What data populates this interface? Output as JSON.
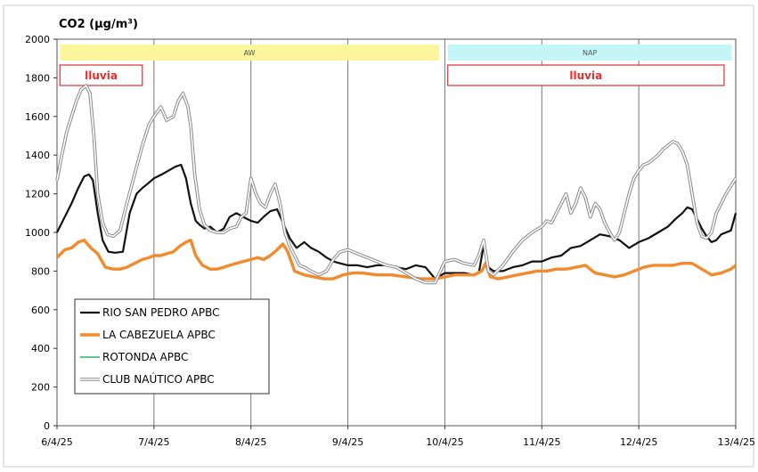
{
  "chart_data": {
    "type": "line",
    "title": "CO2 (µg/m³)",
    "ylim": [
      0,
      2000
    ],
    "yticks": [
      0,
      200,
      400,
      600,
      800,
      1000,
      1200,
      1400,
      1600,
      1800,
      2000
    ],
    "xlim": [
      0,
      7
    ],
    "xticks": [
      {
        "value": 0,
        "label": "6/4/25"
      },
      {
        "value": 1,
        "label": "7/4/25"
      },
      {
        "value": 2,
        "label": "8/4/25"
      },
      {
        "value": 3,
        "label": "9/4/25"
      },
      {
        "value": 4,
        "label": "10/4/25"
      },
      {
        "value": 5,
        "label": "11/4/25"
      },
      {
        "value": 6,
        "label": "12/4/25"
      },
      {
        "value": 7,
        "label": "13/4/25"
      }
    ],
    "grid": "vertical",
    "legend_position": "bottom-left",
    "bands": [
      {
        "label": "AW",
        "x_start": 0.03,
        "x_end": 3.94,
        "color": "#fbf59b"
      },
      {
        "label": "NAP",
        "x_start": 4.03,
        "x_end": 6.96,
        "color": "#c4f6f7"
      }
    ],
    "annotations": [
      {
        "label": "lluvia",
        "x_start": 0.03,
        "x_end": 0.88,
        "color": "#e03030"
      },
      {
        "label": "lluvia",
        "x_start": 4.03,
        "x_end": 6.88,
        "color": "#e03030"
      }
    ],
    "series": [
      {
        "name": "RIO SAN PEDRO APBC",
        "color": "#111111",
        "width": 2.2,
        "x": [
          0,
          0.08,
          0.15,
          0.22,
          0.28,
          0.33,
          0.37,
          0.42,
          0.47,
          0.53,
          0.6,
          0.68,
          0.75,
          0.82,
          0.88,
          0.93,
          1.0,
          1.08,
          1.15,
          1.22,
          1.28,
          1.33,
          1.38,
          1.43,
          1.47,
          1.52,
          1.58,
          1.65,
          1.72,
          1.78,
          1.85,
          1.92,
          2.0,
          2.07,
          2.13,
          2.2,
          2.27,
          2.33,
          2.4,
          2.47,
          2.55,
          2.62,
          2.7,
          2.78,
          2.85,
          2.92,
          3.0,
          3.1,
          3.2,
          3.3,
          3.4,
          3.5,
          3.6,
          3.7,
          3.8,
          3.9,
          4.0,
          4.1,
          4.2,
          4.3,
          4.35,
          4.4,
          4.45,
          4.5,
          4.6,
          4.7,
          4.8,
          4.9,
          5.0,
          5.1,
          5.2,
          5.3,
          5.4,
          5.5,
          5.6,
          5.7,
          5.8,
          5.9,
          6.0,
          6.1,
          6.2,
          6.3,
          6.38,
          6.45,
          6.5,
          6.55,
          6.6,
          6.65,
          6.7,
          6.75,
          6.8,
          6.85,
          6.9,
          6.95,
          7.0
        ],
        "y": [
          1000,
          1080,
          1150,
          1230,
          1290,
          1300,
          1270,
          1100,
          960,
          900,
          895,
          900,
          1100,
          1200,
          1230,
          1250,
          1280,
          1300,
          1320,
          1340,
          1350,
          1280,
          1150,
          1060,
          1040,
          1020,
          1030,
          1000,
          1020,
          1080,
          1100,
          1080,
          1060,
          1050,
          1080,
          1110,
          1120,
          1050,
          970,
          920,
          950,
          920,
          900,
          870,
          850,
          840,
          830,
          830,
          820,
          830,
          830,
          820,
          810,
          830,
          820,
          760,
          790,
          790,
          790,
          780,
          790,
          930,
          820,
          800,
          800,
          820,
          830,
          850,
          850,
          870,
          880,
          920,
          930,
          960,
          990,
          980,
          960,
          920,
          950,
          970,
          1000,
          1030,
          1070,
          1100,
          1130,
          1120,
          1070,
          1020,
          980,
          950,
          960,
          990,
          1000,
          1010,
          1100
        ]
      },
      {
        "name": "LA CABEZUELA  APBC",
        "color": "#f28a2e",
        "width": 3.4,
        "x": [
          0,
          0.08,
          0.15,
          0.22,
          0.28,
          0.35,
          0.42,
          0.5,
          0.58,
          0.65,
          0.72,
          0.8,
          0.88,
          0.95,
          1.0,
          1.07,
          1.13,
          1.2,
          1.27,
          1.33,
          1.38,
          1.43,
          1.5,
          1.58,
          1.65,
          1.72,
          1.78,
          1.85,
          1.92,
          2.0,
          2.07,
          2.13,
          2.2,
          2.27,
          2.33,
          2.38,
          2.45,
          2.55,
          2.65,
          2.75,
          2.85,
          2.95,
          3.05,
          3.15,
          3.3,
          3.45,
          3.6,
          3.75,
          3.9,
          4.0,
          4.1,
          4.2,
          4.3,
          4.38,
          4.42,
          4.47,
          4.55,
          4.65,
          4.75,
          4.85,
          4.95,
          5.05,
          5.15,
          5.25,
          5.35,
          5.45,
          5.55,
          5.65,
          5.75,
          5.85,
          5.95,
          6.05,
          6.15,
          6.25,
          6.35,
          6.45,
          6.55,
          6.65,
          6.75,
          6.85,
          6.95,
          7.0
        ],
        "y": [
          870,
          910,
          920,
          950,
          960,
          920,
          890,
          820,
          810,
          810,
          820,
          840,
          860,
          870,
          880,
          880,
          890,
          900,
          930,
          950,
          960,
          880,
          830,
          810,
          810,
          820,
          830,
          840,
          850,
          860,
          870,
          860,
          880,
          910,
          940,
          900,
          800,
          780,
          770,
          760,
          760,
          780,
          790,
          790,
          780,
          780,
          770,
          760,
          760,
          770,
          780,
          780,
          780,
          800,
          840,
          770,
          760,
          770,
          780,
          790,
          800,
          800,
          810,
          810,
          820,
          830,
          790,
          780,
          770,
          780,
          800,
          820,
          830,
          830,
          830,
          840,
          840,
          810,
          780,
          790,
          810,
          830
        ]
      },
      {
        "name": "ROTONDA  APBC",
        "color": "#5cc993",
        "width": 2.0,
        "x": [],
        "y": []
      },
      {
        "name": "CLUB NAÚTICO  APBC",
        "color": "#aaaaaa",
        "width": 2.0,
        "outline": true,
        "x": [
          0,
          0.05,
          0.1,
          0.15,
          0.2,
          0.25,
          0.3,
          0.34,
          0.38,
          0.42,
          0.47,
          0.52,
          0.58,
          0.65,
          0.72,
          0.8,
          0.88,
          0.95,
          1.0,
          1.07,
          1.13,
          1.2,
          1.25,
          1.3,
          1.35,
          1.38,
          1.42,
          1.47,
          1.52,
          1.58,
          1.65,
          1.72,
          1.78,
          1.85,
          1.9,
          1.95,
          2.0,
          2.05,
          2.1,
          2.15,
          2.2,
          2.25,
          2.3,
          2.35,
          2.4,
          2.45,
          2.5,
          2.55,
          2.62,
          2.7,
          2.78,
          2.85,
          2.92,
          3.0,
          3.1,
          3.2,
          3.3,
          3.4,
          3.5,
          3.6,
          3.7,
          3.8,
          3.9,
          4.0,
          4.1,
          4.2,
          4.3,
          4.35,
          4.4,
          4.45,
          4.5,
          4.6,
          4.7,
          4.8,
          4.9,
          5.0,
          5.05,
          5.1,
          5.15,
          5.2,
          5.25,
          5.3,
          5.35,
          5.4,
          5.45,
          5.5,
          5.55,
          5.6,
          5.65,
          5.7,
          5.75,
          5.8,
          5.85,
          5.9,
          5.95,
          6.0,
          6.05,
          6.1,
          6.15,
          6.2,
          6.25,
          6.3,
          6.35,
          6.4,
          6.45,
          6.5,
          6.55,
          6.6,
          6.65,
          6.7,
          6.75,
          6.8,
          6.85,
          6.9,
          6.95,
          7.0
        ],
        "y": [
          1270,
          1400,
          1520,
          1600,
          1680,
          1740,
          1760,
          1720,
          1500,
          1200,
          1050,
          990,
          980,
          1010,
          1150,
          1300,
          1450,
          1560,
          1600,
          1650,
          1580,
          1600,
          1680,
          1720,
          1650,
          1550,
          1300,
          1120,
          1040,
          1010,
          1000,
          1000,
          1020,
          1030,
          1080,
          1100,
          1280,
          1200,
          1150,
          1130,
          1200,
          1250,
          1150,
          1000,
          930,
          880,
          830,
          820,
          800,
          780,
          800,
          860,
          900,
          910,
          890,
          870,
          850,
          830,
          820,
          790,
          760,
          740,
          740,
          850,
          860,
          840,
          830,
          880,
          960,
          800,
          780,
          830,
          900,
          960,
          1000,
          1030,
          1060,
          1050,
          1100,
          1150,
          1200,
          1100,
          1150,
          1230,
          1180,
          1080,
          1150,
          1120,
          1050,
          1000,
          960,
          1000,
          1100,
          1200,
          1280,
          1320,
          1350,
          1360,
          1380,
          1400,
          1430,
          1450,
          1470,
          1460,
          1420,
          1350,
          1200,
          1050,
          980,
          970,
          1000,
          1100,
          1150,
          1200,
          1240,
          1280
        ]
      }
    ]
  }
}
